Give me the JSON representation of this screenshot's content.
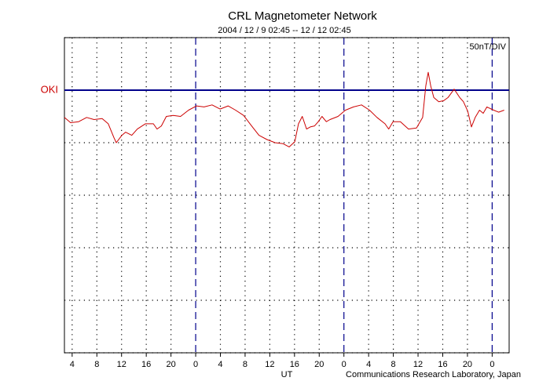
{
  "chart_data": {
    "type": "line",
    "title": "CRL Magnetometer Network",
    "subtitle": "2004 / 12 / 9  02:45 -- 12 / 12  02:45",
    "scale_label": "50nT/DIV",
    "x_label": "UT",
    "credit": "Communications Research Laboratory, Japan",
    "xlim": [
      0,
      72
    ],
    "xticks": [
      {
        "value": 1.25,
        "label": "4"
      },
      {
        "value": 5.25,
        "label": "8"
      },
      {
        "value": 9.25,
        "label": "12"
      },
      {
        "value": 13.25,
        "label": "16"
      },
      {
        "value": 17.25,
        "label": "20"
      },
      {
        "value": 21.25,
        "label": "0"
      },
      {
        "value": 25.25,
        "label": "4"
      },
      {
        "value": 29.25,
        "label": "8"
      },
      {
        "value": 33.25,
        "label": "12"
      },
      {
        "value": 37.25,
        "label": "16"
      },
      {
        "value": 41.25,
        "label": "20"
      },
      {
        "value": 45.25,
        "label": "0"
      },
      {
        "value": 49.25,
        "label": "4"
      },
      {
        "value": 53.25,
        "label": "8"
      },
      {
        "value": 57.25,
        "label": "12"
      },
      {
        "value": 61.25,
        "label": "16"
      },
      {
        "value": 65.25,
        "label": "20"
      },
      {
        "value": 69.25,
        "label": "0"
      }
    ],
    "ylim": [
      -250,
      50
    ],
    "yticks": [
      -250,
      -200,
      -150,
      -100,
      -50,
      0,
      50
    ],
    "baseline": 0,
    "baseline_color": "#00008b",
    "grid": true,
    "series": [
      {
        "name": "OKI",
        "color": "#cc0000",
        "x": [
          0,
          1.0,
          2.3,
          3.6,
          4.8,
          6.1,
          7.1,
          8.0,
          8.4,
          9.3,
          9.9,
          10.9,
          11.8,
          13.1,
          14.4,
          15.0,
          15.7,
          16.5,
          17.6,
          18.8,
          20.1,
          21.4,
          22.6,
          23.9,
          25.2,
          26.5,
          27.7,
          29.0,
          30.3,
          31.5,
          32.8,
          34.1,
          35.4,
          36.4,
          37.3,
          37.9,
          38.5,
          39.2,
          39.8,
          40.5,
          41.1,
          41.7,
          42.4,
          43.0,
          44.3,
          45.5,
          46.8,
          48.1,
          49.4,
          50.6,
          51.9,
          52.5,
          53.2,
          54.4,
          55.7,
          57.0,
          58.0,
          58.5,
          58.9,
          59.3,
          59.8,
          60.6,
          61.4,
          62.1,
          63.1,
          64.0,
          64.6,
          65.3,
          65.9,
          66.5,
          67.2,
          67.8,
          68.4,
          69.5,
          70.3,
          71.2
        ],
        "values": [
          -26,
          -31,
          -30,
          -26,
          -28,
          -27,
          -32,
          -45,
          -50,
          -43,
          -40,
          -43,
          -37,
          -32,
          -32,
          -37,
          -34,
          -25,
          -24,
          -25,
          -19,
          -15,
          -16,
          -14,
          -18,
          -15,
          -19,
          -24,
          -34,
          -43,
          -47,
          -50,
          -51,
          -54,
          -49,
          -32,
          -25,
          -37,
          -35,
          -34,
          -30,
          -25,
          -30,
          -28,
          -25,
          -19,
          -16,
          -14,
          -19,
          -26,
          -32,
          -37,
          -30,
          -30,
          -37,
          -36,
          -26,
          4,
          17,
          4,
          -7,
          -11,
          -10,
          -7,
          1,
          -7,
          -11,
          -20,
          -35,
          -26,
          -19,
          -22,
          -16,
          -19,
          -21,
          -19
        ]
      }
    ]
  }
}
